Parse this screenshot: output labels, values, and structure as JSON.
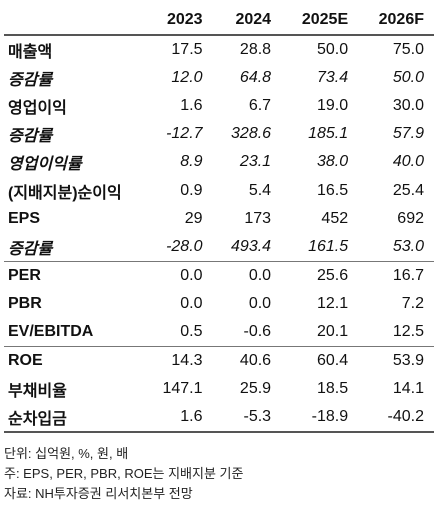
{
  "table": {
    "header": [
      "",
      "2023",
      "2024",
      "2025E",
      "2026F"
    ],
    "rows": [
      [
        "매출액",
        "17.5",
        "28.8",
        "50.0",
        "75.0"
      ],
      [
        "증감률",
        "12.0",
        "64.8",
        "73.4",
        "50.0"
      ],
      [
        "영업이익",
        "1.6",
        "6.7",
        "19.0",
        "30.0"
      ],
      [
        "증감률",
        "-12.7",
        "328.6",
        "185.1",
        "57.9"
      ],
      [
        "영업이익률",
        "8.9",
        "23.1",
        "38.0",
        "40.0"
      ],
      [
        "(지배지분)순이익",
        "0.9",
        "5.4",
        "16.5",
        "25.4"
      ],
      [
        "EPS",
        "29",
        "173",
        "452",
        "692"
      ],
      [
        "증감률",
        "-28.0",
        "493.4",
        "161.5",
        "53.0"
      ],
      [
        "PER",
        "0.0",
        "0.0",
        "25.6",
        "16.7"
      ],
      [
        "PBR",
        "0.0",
        "0.0",
        "12.1",
        "7.2"
      ],
      [
        "EV/EBITDA",
        "0.5",
        "-0.6",
        "20.1",
        "12.5"
      ],
      [
        "ROE",
        "14.3",
        "40.6",
        "60.4",
        "53.9"
      ],
      [
        "부채비율",
        "147.1",
        "25.9",
        "18.5",
        "14.1"
      ],
      [
        "순차입금",
        "1.6",
        "-5.3",
        "-18.9",
        "-40.2"
      ]
    ]
  },
  "notes": [
    "단위: 십억원, %, 원, 배",
    "주: EPS, PER, PBR, ROE는 지배지분 기준",
    "자료: NH투자증권 리서치본부 전망"
  ]
}
